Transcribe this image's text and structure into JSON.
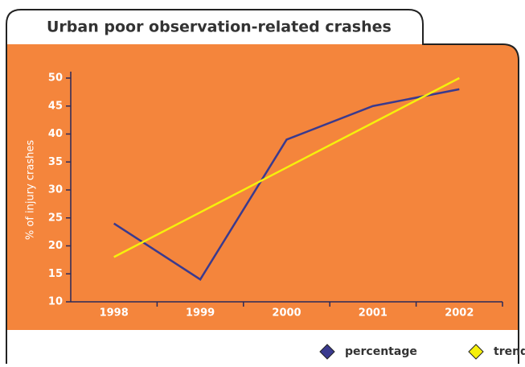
{
  "chart_data": {
    "type": "line",
    "title": "Urban poor observation-related crashes",
    "y_label": "% of injury crashes",
    "categories": [
      "1998",
      "1999",
      "2000",
      "2001",
      "2002"
    ],
    "series": [
      {
        "name": "percentage",
        "color": "#3a3a8e",
        "values": [
          24,
          14,
          39,
          45,
          48
        ]
      },
      {
        "name": "trend",
        "color": "#f6f00c",
        "values": [
          18,
          26,
          34,
          42,
          50
        ]
      }
    ],
    "ylim": [
      10,
      50
    ],
    "yticks": [
      10,
      15,
      20,
      25,
      30,
      35,
      40,
      45,
      50
    ],
    "legend": "bottom-right"
  }
}
